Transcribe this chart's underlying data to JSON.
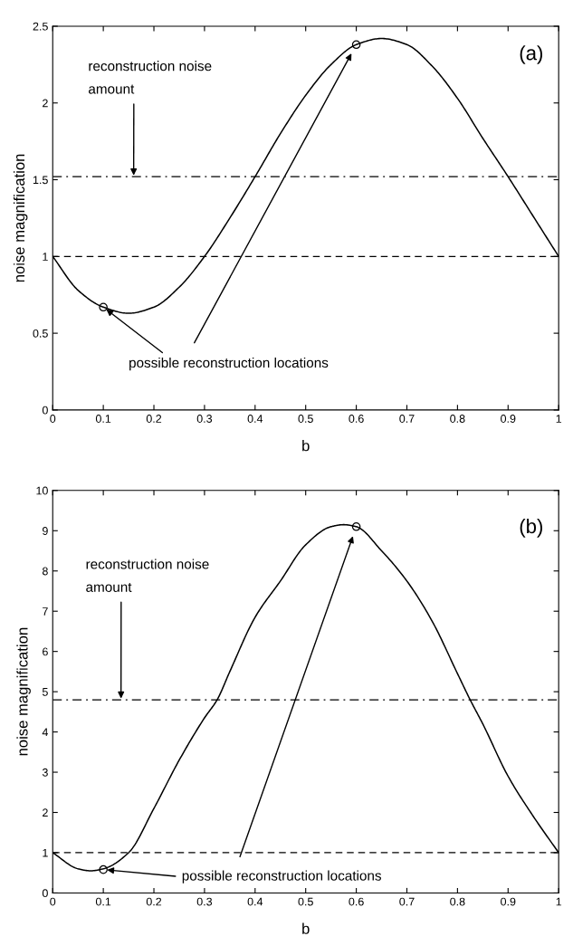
{
  "chart_data": [
    {
      "type": "line",
      "xlabel": "b",
      "ylabel": "noise magnification",
      "xlim": [
        0,
        1
      ],
      "ylim": [
        0,
        2.5
      ],
      "xticks": [
        0,
        0.1,
        0.2,
        0.3,
        0.4,
        0.5,
        0.6,
        0.7,
        0.8,
        0.9,
        1
      ],
      "yticks": [
        0,
        0.5,
        1,
        1.5,
        2,
        2.5
      ],
      "grid": false,
      "legend": false,
      "series": [
        {
          "type": "line",
          "color": "#000000",
          "marker": "none",
          "line_style": "solid",
          "x": [
            0,
            0.05,
            0.1,
            0.15,
            0.2,
            0.25,
            0.3,
            0.35,
            0.4,
            0.45,
            0.5,
            0.55,
            0.6,
            0.65,
            0.7,
            0.75,
            0.8,
            0.85,
            0.9,
            0.95,
            1
          ],
          "values": [
            1.0,
            0.78,
            0.67,
            0.63,
            0.67,
            0.8,
            1.0,
            1.25,
            1.52,
            1.8,
            2.05,
            2.25,
            2.38,
            2.42,
            2.38,
            2.24,
            2.03,
            1.77,
            1.52,
            1.26,
            1.0
          ]
        },
        {
          "type": "scatter",
          "color": "#000000",
          "marker": "circle",
          "x": [
            0.1,
            0.6
          ],
          "values": [
            0.67,
            2.38
          ]
        }
      ],
      "ref_lines": [
        {
          "axis": "y",
          "value": 1,
          "line_style": "dashed",
          "color": "#000000"
        },
        {
          "axis": "y",
          "value": 1.52,
          "line_style": "dashdot",
          "color": "#000000"
        }
      ],
      "annotations": [
        "(a)",
        {
          "text": "reconstruction noise\namount",
          "x": 0.16,
          "y": 1.52
        },
        {
          "text": "possible reconstruction locations",
          "x": 0.1,
          "y": 0.67
        }
      ]
    },
    {
      "type": "line",
      "xlabel": "b",
      "ylabel": "noise magnification",
      "xlim": [
        0,
        1
      ],
      "ylim": [
        0,
        10
      ],
      "xticks": [
        0,
        0.1,
        0.2,
        0.3,
        0.4,
        0.5,
        0.6,
        0.7,
        0.8,
        0.9,
        1
      ],
      "yticks": [
        0,
        1,
        2,
        3,
        4,
        5,
        6,
        7,
        8,
        9,
        10
      ],
      "grid": false,
      "legend": false,
      "series": [
        {
          "type": "line",
          "color": "#000000",
          "marker": "none",
          "line_style": "solid",
          "x": [
            0,
            0.05,
            0.075,
            0.1,
            0.15,
            0.2,
            0.25,
            0.3,
            0.325,
            0.35,
            0.4,
            0.45,
            0.5,
            0.55,
            0.575,
            0.6,
            0.65,
            0.7,
            0.75,
            0.8,
            0.825,
            0.85,
            0.9,
            0.95,
            1
          ],
          "values": [
            1.0,
            0.6,
            0.55,
            0.6,
            1.0,
            2.1,
            3.3,
            4.35,
            4.8,
            5.5,
            6.85,
            7.75,
            8.65,
            9.1,
            9.15,
            9.1,
            8.5,
            7.75,
            6.75,
            5.45,
            4.8,
            4.2,
            2.9,
            1.9,
            1.0
          ]
        },
        {
          "type": "scatter",
          "color": "#000000",
          "marker": "circle",
          "x": [
            0.1,
            0.6
          ],
          "values": [
            0.58,
            9.1
          ]
        }
      ],
      "ref_lines": [
        {
          "axis": "y",
          "value": 1,
          "line_style": "dashed",
          "color": "#000000"
        },
        {
          "axis": "y",
          "value": 4.8,
          "line_style": "dashdot",
          "color": "#000000"
        }
      ],
      "annotations": [
        "(b)",
        {
          "text": "reconstruction noise\namount",
          "x": 0.135,
          "y": 4.8
        },
        {
          "text": "possible reconstruction locations",
          "x": 0.1,
          "y": 0.58
        }
      ]
    }
  ]
}
